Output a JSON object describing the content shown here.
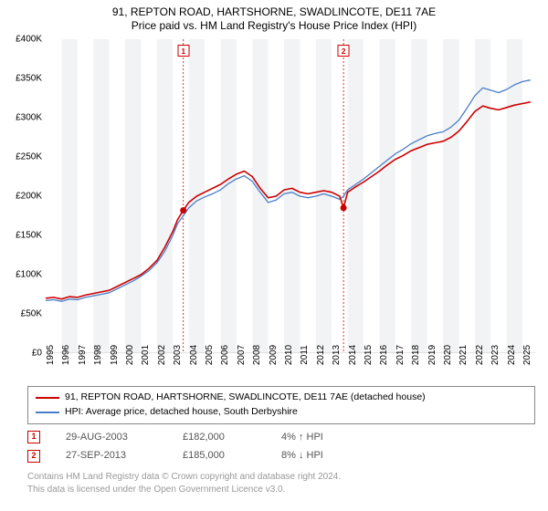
{
  "title": "91, REPTON ROAD, HARTSHORNE, SWADLINCOTE, DE11 7AE",
  "subtitle": "Price paid vs. HM Land Registry's House Price Index (HPI)",
  "chart": {
    "type": "line",
    "background_color": "#ffffff",
    "vstripe_colors": [
      "#ffffff",
      "#f1f3f5"
    ],
    "grid_dash_color": "#cc0000",
    "ylim": [
      0,
      400000
    ],
    "ytick_step": 50000,
    "ytick_labels": [
      "£0",
      "£50K",
      "£100K",
      "£150K",
      "£200K",
      "£250K",
      "£300K",
      "£350K",
      "£400K"
    ],
    "xlim": [
      1995,
      2025.8
    ],
    "x_ticks": [
      1995,
      1996,
      1997,
      1998,
      1999,
      2000,
      2001,
      2002,
      2003,
      2004,
      2005,
      2006,
      2007,
      2008,
      2009,
      2010,
      2011,
      2012,
      2013,
      2014,
      2015,
      2016,
      2017,
      2018,
      2019,
      2020,
      2021,
      2022,
      2023,
      2024,
      2025
    ],
    "label_fontsize": 10,
    "series": [
      {
        "name": "property",
        "color": "#cc0000",
        "width": 1.6,
        "points": [
          [
            1995,
            70000
          ],
          [
            1995.5,
            71000
          ],
          [
            1996,
            69000
          ],
          [
            1996.5,
            72000
          ],
          [
            1997,
            71000
          ],
          [
            1997.5,
            74000
          ],
          [
            1998,
            76000
          ],
          [
            1998.5,
            78000
          ],
          [
            1999,
            80000
          ],
          [
            1999.5,
            85000
          ],
          [
            2000,
            90000
          ],
          [
            2000.5,
            95000
          ],
          [
            2001,
            100000
          ],
          [
            2001.5,
            108000
          ],
          [
            2002,
            118000
          ],
          [
            2002.5,
            135000
          ],
          [
            2003,
            155000
          ],
          [
            2003.3,
            170000
          ],
          [
            2003.66,
            182000
          ],
          [
            2004,
            192000
          ],
          [
            2004.5,
            200000
          ],
          [
            2005,
            205000
          ],
          [
            2005.5,
            210000
          ],
          [
            2006,
            215000
          ],
          [
            2006.5,
            222000
          ],
          [
            2007,
            228000
          ],
          [
            2007.5,
            232000
          ],
          [
            2008,
            225000
          ],
          [
            2008.5,
            210000
          ],
          [
            2009,
            198000
          ],
          [
            2009.5,
            200000
          ],
          [
            2010,
            208000
          ],
          [
            2010.5,
            210000
          ],
          [
            2011,
            205000
          ],
          [
            2011.5,
            203000
          ],
          [
            2012,
            205000
          ],
          [
            2012.5,
            207000
          ],
          [
            2013,
            205000
          ],
          [
            2013.5,
            200000
          ],
          [
            2013.74,
            185000
          ],
          [
            2014,
            205000
          ],
          [
            2014.5,
            212000
          ],
          [
            2015,
            218000
          ],
          [
            2015.5,
            225000
          ],
          [
            2016,
            232000
          ],
          [
            2016.5,
            240000
          ],
          [
            2017,
            247000
          ],
          [
            2017.5,
            252000
          ],
          [
            2018,
            258000
          ],
          [
            2018.5,
            262000
          ],
          [
            2019,
            266000
          ],
          [
            2019.5,
            268000
          ],
          [
            2020,
            270000
          ],
          [
            2020.5,
            275000
          ],
          [
            2021,
            283000
          ],
          [
            2021.5,
            295000
          ],
          [
            2022,
            308000
          ],
          [
            2022.5,
            315000
          ],
          [
            2023,
            312000
          ],
          [
            2023.5,
            310000
          ],
          [
            2024,
            313000
          ],
          [
            2024.5,
            316000
          ],
          [
            2025,
            318000
          ],
          [
            2025.5,
            320000
          ]
        ]
      },
      {
        "name": "hpi",
        "color": "#4a7dc9",
        "width": 1.3,
        "points": [
          [
            1995,
            67000
          ],
          [
            1995.5,
            68000
          ],
          [
            1996,
            66000
          ],
          [
            1996.5,
            69000
          ],
          [
            1997,
            68000
          ],
          [
            1997.5,
            71000
          ],
          [
            1998,
            73000
          ],
          [
            1998.5,
            75000
          ],
          [
            1999,
            77000
          ],
          [
            1999.5,
            82000
          ],
          [
            2000,
            87000
          ],
          [
            2000.5,
            92000
          ],
          [
            2001,
            98000
          ],
          [
            2001.5,
            105000
          ],
          [
            2002,
            115000
          ],
          [
            2002.5,
            130000
          ],
          [
            2003,
            150000
          ],
          [
            2003.3,
            165000
          ],
          [
            2003.66,
            175000
          ],
          [
            2004,
            185000
          ],
          [
            2004.5,
            194000
          ],
          [
            2005,
            199000
          ],
          [
            2005.5,
            203000
          ],
          [
            2006,
            208000
          ],
          [
            2006.5,
            216000
          ],
          [
            2007,
            222000
          ],
          [
            2007.5,
            226000
          ],
          [
            2008,
            219000
          ],
          [
            2008.5,
            205000
          ],
          [
            2009,
            192000
          ],
          [
            2009.5,
            195000
          ],
          [
            2010,
            203000
          ],
          [
            2010.5,
            205000
          ],
          [
            2011,
            200000
          ],
          [
            2011.5,
            198000
          ],
          [
            2012,
            200000
          ],
          [
            2012.5,
            203000
          ],
          [
            2013,
            200000
          ],
          [
            2013.5,
            196000
          ],
          [
            2013.74,
            200000
          ],
          [
            2014,
            208000
          ],
          [
            2014.5,
            215000
          ],
          [
            2015,
            222000
          ],
          [
            2015.5,
            230000
          ],
          [
            2016,
            238000
          ],
          [
            2016.5,
            246000
          ],
          [
            2017,
            254000
          ],
          [
            2017.5,
            260000
          ],
          [
            2018,
            267000
          ],
          [
            2018.5,
            272000
          ],
          [
            2019,
            277000
          ],
          [
            2019.5,
            280000
          ],
          [
            2020,
            282000
          ],
          [
            2020.5,
            288000
          ],
          [
            2021,
            297000
          ],
          [
            2021.5,
            312000
          ],
          [
            2022,
            328000
          ],
          [
            2022.5,
            338000
          ],
          [
            2023,
            335000
          ],
          [
            2023.5,
            332000
          ],
          [
            2024,
            336000
          ],
          [
            2024.5,
            342000
          ],
          [
            2025,
            346000
          ],
          [
            2025.5,
            348000
          ]
        ]
      }
    ],
    "sale_markers": [
      {
        "label": "1",
        "x": 2003.66,
        "y": 182000
      },
      {
        "label": "2",
        "x": 2013.74,
        "y": 185000
      }
    ]
  },
  "legend": {
    "series1": "91, REPTON ROAD, HARTSHORNE, SWADLINCOTE, DE11 7AE (detached house)",
    "series2": "HPI: Average price, detached house, South Derbyshire"
  },
  "transactions": [
    {
      "marker": "1",
      "date": "29-AUG-2003",
      "price": "£182,000",
      "diff": "4% ↑ HPI"
    },
    {
      "marker": "2",
      "date": "27-SEP-2013",
      "price": "£185,000",
      "diff": "8% ↓ HPI"
    }
  ],
  "footer_line1": "Contains HM Land Registry data © Crown copyright and database right 2024.",
  "footer_line2": "This data is licensed under the Open Government Licence v3.0."
}
